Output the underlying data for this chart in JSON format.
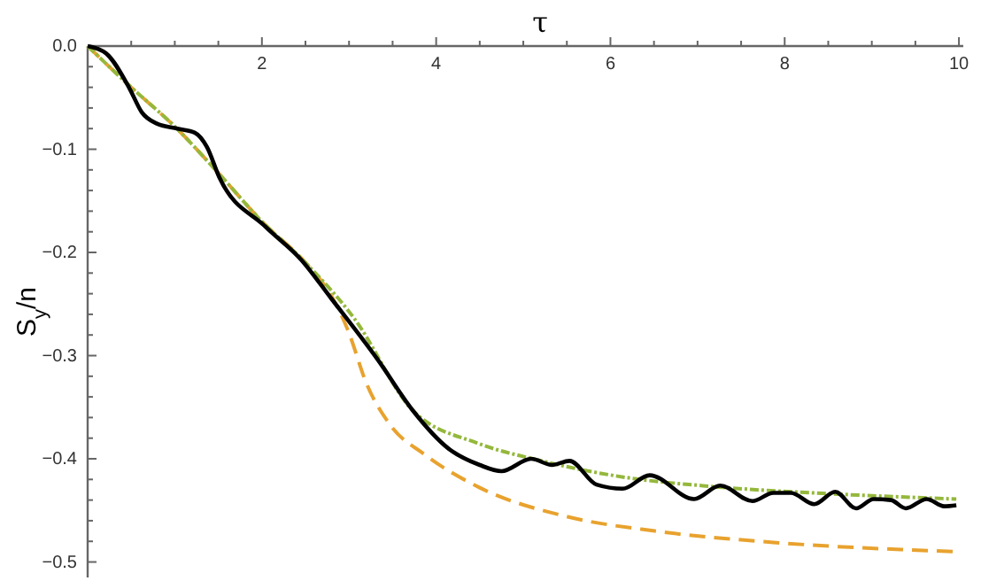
{
  "chart_data": {
    "type": "line",
    "xlabel": "τ",
    "ylabel": "S$_{y}$/n",
    "xlim": [
      0,
      10.05
    ],
    "ylim": [
      -0.515,
      0
    ],
    "xticks": [
      {
        "value": 0.5,
        "label": null
      },
      {
        "value": 1,
        "label": null
      },
      {
        "value": 1.5,
        "label": null
      },
      2,
      {
        "value": 2.5,
        "label": null
      },
      {
        "value": 3,
        "label": null
      },
      {
        "value": 3.5,
        "label": null
      },
      4,
      {
        "value": 4.5,
        "label": null
      },
      {
        "value": 5,
        "label": null
      },
      {
        "value": 5.5,
        "label": null
      },
      6,
      {
        "value": 6.5,
        "label": null
      },
      {
        "value": 7,
        "label": null
      },
      {
        "value": 7.5,
        "label": null
      },
      8,
      {
        "value": 8.5,
        "label": null
      },
      {
        "value": 9,
        "label": null
      },
      {
        "value": 9.5,
        "label": null
      },
      10
    ],
    "yticks": [
      {
        "value": 0,
        "label": "0.0"
      },
      {
        "value": -0.02,
        "label": null
      },
      {
        "value": -0.04,
        "label": null
      },
      {
        "value": -0.06,
        "label": null
      },
      {
        "value": -0.08,
        "label": null
      },
      {
        "value": -0.1,
        "label": "−0.1"
      },
      {
        "value": -0.12,
        "label": null
      },
      {
        "value": -0.14,
        "label": null
      },
      {
        "value": -0.16,
        "label": null
      },
      {
        "value": -0.18,
        "label": null
      },
      {
        "value": -0.2,
        "label": "−0.2"
      },
      {
        "value": -0.22,
        "label": null
      },
      {
        "value": -0.24,
        "label": null
      },
      {
        "value": -0.26,
        "label": null
      },
      {
        "value": -0.28,
        "label": null
      },
      {
        "value": -0.3,
        "label": "−0.3"
      },
      {
        "value": -0.32,
        "label": null
      },
      {
        "value": -0.34,
        "label": null
      },
      {
        "value": -0.36,
        "label": null
      },
      {
        "value": -0.38,
        "label": null
      },
      {
        "value": -0.4,
        "label": "−0.4"
      },
      {
        "value": -0.42,
        "label": null
      },
      {
        "value": -0.44,
        "label": null
      },
      {
        "value": -0.46,
        "label": null
      },
      {
        "value": -0.48,
        "label": null
      },
      {
        "value": -0.5,
        "label": "−0.5"
      }
    ],
    "grid": false,
    "marker": "none",
    "series": [
      {
        "color": "#e8a22e",
        "line_style": "dashed",
        "x": [
          0,
          0.5,
          1,
          1.5,
          2,
          2.5,
          2.79,
          2.99,
          3.2,
          3.47,
          3.87,
          4.5,
          5.5,
          6.51,
          7.87,
          9.97
        ],
        "values": [
          0,
          -0.04,
          -0.078,
          -0.123,
          -0.17,
          -0.21,
          -0.241,
          -0.276,
          -0.327,
          -0.367,
          -0.396,
          -0.428,
          -0.456,
          -0.47,
          -0.481,
          -0.49
        ]
      },
      {
        "color": "#94b83c",
        "line_style": "dotted",
        "x": [
          0,
          0.5,
          1,
          1.5,
          2,
          2.5,
          3.06,
          3.73,
          4.48,
          5.16,
          6.17,
          7.19,
          8.55,
          9.97
        ],
        "values": [
          0,
          -0.04,
          -0.078,
          -0.123,
          -0.17,
          -0.21,
          -0.264,
          -0.353,
          -0.385,
          -0.401,
          -0.418,
          -0.427,
          -0.434,
          -0.439
        ]
      },
      {
        "color": "#000000",
        "line_style": "solid",
        "x": [
          0,
          0.21,
          0.48,
          0.62,
          0.79,
          1.03,
          1.23,
          1.37,
          1.51,
          2.04,
          2.45,
          2.79,
          3.33,
          3.73,
          4.14,
          4.5,
          4.75,
          5.09,
          5.33,
          5.53,
          5.84,
          6.14,
          6.45,
          6.96,
          7.26,
          7.63,
          7.87,
          8.07,
          8.34,
          8.58,
          8.82,
          9.02,
          9.22,
          9.39,
          9.63,
          9.83,
          9.97
        ],
        "values": [
          0,
          -0.007,
          -0.041,
          -0.064,
          -0.075,
          -0.08,
          -0.084,
          -0.098,
          -0.127,
          -0.175,
          -0.207,
          -0.244,
          -0.304,
          -0.353,
          -0.39,
          -0.406,
          -0.412,
          -0.4,
          -0.406,
          -0.402,
          -0.425,
          -0.429,
          -0.416,
          -0.439,
          -0.426,
          -0.441,
          -0.433,
          -0.433,
          -0.444,
          -0.432,
          -0.448,
          -0.439,
          -0.44,
          -0.448,
          -0.439,
          -0.446,
          -0.445
        ]
      }
    ]
  }
}
